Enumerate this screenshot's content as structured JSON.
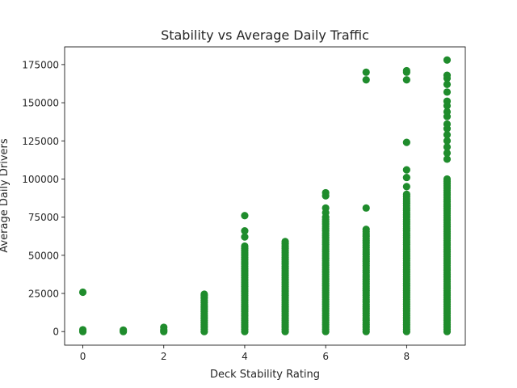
{
  "chart_data": {
    "type": "scatter",
    "title": "Stability vs Average Daily Traffic",
    "xlabel": "Deck Stability Rating",
    "ylabel": "Average Daily Drivers",
    "xlim": [
      -0.45,
      9.45
    ],
    "ylim": [
      -8900,
      186600
    ],
    "x_ticks": [
      0,
      2,
      4,
      6,
      8
    ],
    "x_tick_labels": [
      "0",
      "2",
      "4",
      "6",
      "8"
    ],
    "y_ticks": [
      0,
      25000,
      50000,
      75000,
      100000,
      125000,
      150000,
      175000
    ],
    "y_tick_labels": [
      "0",
      "25000",
      "50000",
      "75000",
      "100000",
      "125000",
      "150000",
      "175000"
    ],
    "grid": false,
    "legend": "none",
    "marker_color": "#1f8c2c",
    "series": [
      {
        "points": [
          {
            "x": 0,
            "y_range": [
              0,
              1200
            ]
          },
          {
            "x": 0,
            "y": 25800
          },
          {
            "x": 1,
            "y_range": [
              0,
              1000
            ]
          },
          {
            "x": 2,
            "y_range": [
              0,
              1000
            ]
          },
          {
            "x": 2,
            "y": 2800
          },
          {
            "x": 3,
            "y_range": [
              0,
              22000
            ]
          },
          {
            "x": 3,
            "y": 23500
          },
          {
            "x": 3,
            "y": 24500
          },
          {
            "x": 4,
            "y_range": [
              0,
              56000
            ]
          },
          {
            "x": 4,
            "y": 62000
          },
          {
            "x": 4,
            "y": 66000
          },
          {
            "x": 4,
            "y": 76000
          },
          {
            "x": 5,
            "y_range": [
              0,
              59000
            ]
          },
          {
            "x": 6,
            "y_range": [
              0,
              75000
            ]
          },
          {
            "x": 6,
            "y": 78000
          },
          {
            "x": 6,
            "y": 81000
          },
          {
            "x": 6,
            "y": 89000
          },
          {
            "x": 6,
            "y": 91000
          },
          {
            "x": 7,
            "y_range": [
              0,
              67000
            ]
          },
          {
            "x": 7,
            "y": 81000
          },
          {
            "x": 7,
            "y": 165000
          },
          {
            "x": 7,
            "y": 170000
          },
          {
            "x": 8,
            "y_range": [
              0,
              90000
            ]
          },
          {
            "x": 8,
            "y": 95000
          },
          {
            "x": 8,
            "y": 101000
          },
          {
            "x": 8,
            "y": 106000
          },
          {
            "x": 8,
            "y": 124000
          },
          {
            "x": 8,
            "y": 165000
          },
          {
            "x": 8,
            "y": 170000
          },
          {
            "x": 8,
            "y": 171000
          },
          {
            "x": 9,
            "y_range": [
              0,
              100000
            ]
          },
          {
            "x": 9,
            "y": 113000
          },
          {
            "x": 9,
            "y": 117000
          },
          {
            "x": 9,
            "y": 121000
          },
          {
            "x": 9,
            "y": 125000
          },
          {
            "x": 9,
            "y": 129000
          },
          {
            "x": 9,
            "y": 133000
          },
          {
            "x": 9,
            "y": 136000
          },
          {
            "x": 9,
            "y": 141000
          },
          {
            "x": 9,
            "y": 144000
          },
          {
            "x": 9,
            "y": 148000
          },
          {
            "x": 9,
            "y": 151000
          },
          {
            "x": 9,
            "y": 157000
          },
          {
            "x": 9,
            "y": 162000
          },
          {
            "x": 9,
            "y": 166000
          },
          {
            "x": 9,
            "y": 168000
          },
          {
            "x": 9,
            "y": 178000
          }
        ]
      }
    ]
  }
}
